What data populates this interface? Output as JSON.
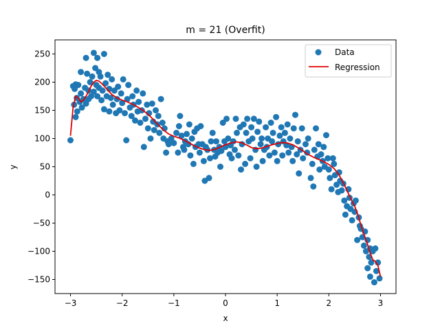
{
  "chart_data": {
    "type": "scatter",
    "title": "m = 21 (Overfit)",
    "xlabel": "x",
    "ylabel": "y",
    "xlim": [
      -3.3,
      3.3
    ],
    "ylim": [
      -175,
      275
    ],
    "xticks": [
      -3,
      -2,
      -1,
      0,
      1,
      2,
      3
    ],
    "yticks": [
      -150,
      -100,
      -50,
      0,
      50,
      100,
      150,
      200,
      250
    ],
    "legend_position": "top-right",
    "colors": {
      "data": "#1f77b4",
      "regression": "#e00000"
    },
    "series": [
      {
        "name": "Data",
        "kind": "scatter",
        "points": [
          [
            -3.0,
            97
          ],
          [
            -2.95,
            193
          ],
          [
            -2.93,
            160
          ],
          [
            -2.92,
            188
          ],
          [
            -2.9,
            196
          ],
          [
            -2.9,
            138
          ],
          [
            -2.88,
            172
          ],
          [
            -2.87,
            148
          ],
          [
            -2.85,
            195
          ],
          [
            -2.82,
            165
          ],
          [
            -2.8,
            218
          ],
          [
            -2.8,
            180
          ],
          [
            -2.78,
            155
          ],
          [
            -2.75,
            170
          ],
          [
            -2.72,
            190
          ],
          [
            -2.7,
            243
          ],
          [
            -2.7,
            162
          ],
          [
            -2.68,
            215
          ],
          [
            -2.65,
            185
          ],
          [
            -2.65,
            170
          ],
          [
            -2.62,
            200
          ],
          [
            -2.6,
            175
          ],
          [
            -2.58,
            210
          ],
          [
            -2.55,
            252
          ],
          [
            -2.55,
            183
          ],
          [
            -2.52,
            225
          ],
          [
            -2.5,
            195
          ],
          [
            -2.48,
            243
          ],
          [
            -2.48,
            175
          ],
          [
            -2.45,
            218
          ],
          [
            -2.45,
            190
          ],
          [
            -2.42,
            210
          ],
          [
            -2.4,
            168
          ],
          [
            -2.38,
            185
          ],
          [
            -2.35,
            250
          ],
          [
            -2.35,
            152
          ],
          [
            -2.32,
            198
          ],
          [
            -2.3,
            175
          ],
          [
            -2.28,
            213
          ],
          [
            -2.25,
            188
          ],
          [
            -2.25,
            148
          ],
          [
            -2.22,
            172
          ],
          [
            -2.2,
            205
          ],
          [
            -2.18,
            160
          ],
          [
            -2.15,
            185
          ],
          [
            -2.12,
            145
          ],
          [
            -2.1,
            170
          ],
          [
            -2.08,
            192
          ],
          [
            -2.05,
            150
          ],
          [
            -2.02,
            180
          ],
          [
            -2.0,
            163
          ],
          [
            -1.98,
            205
          ],
          [
            -1.95,
            145
          ],
          [
            -1.92,
            97
          ],
          [
            -1.9,
            170
          ],
          [
            -1.88,
            195
          ],
          [
            -1.85,
            155
          ],
          [
            -1.82,
            140
          ],
          [
            -1.8,
            175
          ],
          [
            -1.78,
            160
          ],
          [
            -1.75,
            132
          ],
          [
            -1.72,
            185
          ],
          [
            -1.7,
            148
          ],
          [
            -1.68,
            165
          ],
          [
            -1.65,
            128
          ],
          [
            -1.62,
            150
          ],
          [
            -1.6,
            180
          ],
          [
            -1.58,
            85
          ],
          [
            -1.55,
            135
          ],
          [
            -1.52,
            160
          ],
          [
            -1.5,
            118
          ],
          [
            -1.48,
            145
          ],
          [
            -1.45,
            100
          ],
          [
            -1.42,
            162
          ],
          [
            -1.4,
            130
          ],
          [
            -1.38,
            115
          ],
          [
            -1.35,
            150
          ],
          [
            -1.32,
            125
          ],
          [
            -1.3,
            140
          ],
          [
            -1.28,
            110
          ],
          [
            -1.25,
            170
          ],
          [
            -1.22,
            128
          ],
          [
            -1.2,
            100
          ],
          [
            -1.18,
            118
          ],
          [
            -1.15,
            75
          ],
          [
            -1.12,
            95
          ],
          [
            -1.1,
            90
          ],
          [
            -1.05,
            100
          ],
          [
            -1.0,
            92
          ],
          [
            -0.95,
            110
          ],
          [
            -0.92,
            75
          ],
          [
            -0.9,
            122
          ],
          [
            -0.88,
            140
          ],
          [
            -0.85,
            105
          ],
          [
            -0.82,
            85
          ],
          [
            -0.8,
            80
          ],
          [
            -0.78,
            95
          ],
          [
            -0.75,
            108
          ],
          [
            -0.72,
            90
          ],
          [
            -0.7,
            125
          ],
          [
            -0.68,
            70
          ],
          [
            -0.65,
            100
          ],
          [
            -0.62,
            55
          ],
          [
            -0.6,
            112
          ],
          [
            -0.58,
            85
          ],
          [
            -0.55,
            118
          ],
          [
            -0.52,
            90
          ],
          [
            -0.5,
            75
          ],
          [
            -0.48,
            122
          ],
          [
            -0.45,
            90
          ],
          [
            -0.42,
            60
          ],
          [
            -0.4,
            25
          ],
          [
            -0.38,
            85
          ],
          [
            -0.35,
            80
          ],
          [
            -0.32,
            30
          ],
          [
            -0.3,
            65
          ],
          [
            -0.28,
            95
          ],
          [
            -0.25,
            110
          ],
          [
            -0.22,
            80
          ],
          [
            -0.2,
            68
          ],
          [
            -0.18,
            95
          ],
          [
            -0.15,
            75
          ],
          [
            -0.12,
            85
          ],
          [
            -0.1,
            50
          ],
          [
            -0.08,
            78
          ],
          [
            -0.05,
            128
          ],
          [
            -0.02,
            95
          ],
          [
            0.0,
            85
          ],
          [
            0.02,
            135
          ],
          [
            0.05,
            100
          ],
          [
            0.08,
            72
          ],
          [
            0.1,
            88
          ],
          [
            0.12,
            65
          ],
          [
            0.15,
            95
          ],
          [
            0.18,
            80
          ],
          [
            0.2,
            135
          ],
          [
            0.22,
            110
          ],
          [
            0.25,
            70
          ],
          [
            0.28,
            120
          ],
          [
            0.3,
            45
          ],
          [
            0.32,
            90
          ],
          [
            0.35,
            125
          ],
          [
            0.38,
            55
          ],
          [
            0.4,
            110
          ],
          [
            0.42,
            135
          ],
          [
            0.45,
            95
          ],
          [
            0.48,
            65
          ],
          [
            0.5,
            120
          ],
          [
            0.52,
            100
          ],
          [
            0.55,
            135
          ],
          [
            0.58,
            80
          ],
          [
            0.6,
            50
          ],
          [
            0.62,
            112
          ],
          [
            0.65,
            130
          ],
          [
            0.68,
            90
          ],
          [
            0.7,
            100
          ],
          [
            0.72,
            60
          ],
          [
            0.75,
            80
          ],
          [
            0.78,
            120
          ],
          [
            0.8,
            85
          ],
          [
            0.82,
            100
          ],
          [
            0.85,
            70
          ],
          [
            0.88,
            128
          ],
          [
            0.9,
            95
          ],
          [
            0.92,
            110
          ],
          [
            0.95,
            75
          ],
          [
            0.98,
            138
          ],
          [
            1.0,
            60
          ],
          [
            1.02,
            90
          ],
          [
            1.05,
            105
          ],
          [
            1.08,
            120
          ],
          [
            1.1,
            70
          ],
          [
            1.12,
            95
          ],
          [
            1.15,
            110
          ],
          [
            1.18,
            88
          ],
          [
            1.2,
            125
          ],
          [
            1.22,
            75
          ],
          [
            1.25,
            100
          ],
          [
            1.28,
            85
          ],
          [
            1.3,
            60
          ],
          [
            1.32,
            118
          ],
          [
            1.35,
            142
          ],
          [
            1.38,
            72
          ],
          [
            1.4,
            95
          ],
          [
            1.42,
            38
          ],
          [
            1.45,
            80
          ],
          [
            1.48,
            118
          ],
          [
            1.5,
            65
          ],
          [
            1.55,
            90
          ],
          [
            1.58,
            75
          ],
          [
            1.6,
            100
          ],
          [
            1.65,
            30
          ],
          [
            1.68,
            55
          ],
          [
            1.7,
            15
          ],
          [
            1.72,
            80
          ],
          [
            1.75,
            118
          ],
          [
            1.78,
            68
          ],
          [
            1.8,
            90
          ],
          [
            1.82,
            45
          ],
          [
            1.85,
            72
          ],
          [
            1.88,
            60
          ],
          [
            1.9,
            85
          ],
          [
            1.92,
            50
          ],
          [
            1.95,
            106
          ],
          [
            1.98,
            65
          ],
          [
            2.0,
            45
          ],
          [
            2.02,
            30
          ],
          [
            2.05,
            10
          ],
          [
            2.08,
            65
          ],
          [
            2.1,
            55
          ],
          [
            2.12,
            35
          ],
          [
            2.15,
            18
          ],
          [
            2.18,
            5
          ],
          [
            2.2,
            40
          ],
          [
            2.22,
            25
          ],
          [
            2.25,
            8
          ],
          [
            2.28,
            20
          ],
          [
            2.3,
            -10
          ],
          [
            2.32,
            -35
          ],
          [
            2.35,
            -20
          ],
          [
            2.38,
            10
          ],
          [
            2.4,
            -5
          ],
          [
            2.42,
            -25
          ],
          [
            2.45,
            -45
          ],
          [
            2.48,
            -15
          ],
          [
            2.5,
            -30
          ],
          [
            2.52,
            -10
          ],
          [
            2.55,
            -80
          ],
          [
            2.58,
            -40
          ],
          [
            2.6,
            -55
          ],
          [
            2.62,
            -60
          ],
          [
            2.65,
            -75
          ],
          [
            2.68,
            -90
          ],
          [
            2.7,
            -65
          ],
          [
            2.72,
            -100
          ],
          [
            2.75,
            -130
          ],
          [
            2.75,
            -80
          ],
          [
            2.78,
            -110
          ],
          [
            2.8,
            -95
          ],
          [
            2.8,
            -145
          ],
          [
            2.82,
            -120
          ],
          [
            2.85,
            -100
          ],
          [
            2.88,
            -155
          ],
          [
            2.9,
            -95
          ],
          [
            2.92,
            -135
          ],
          [
            2.95,
            -120
          ],
          [
            2.98,
            -148
          ]
        ]
      },
      {
        "name": "Regression",
        "kind": "line",
        "points": [
          [
            -3.0,
            105
          ],
          [
            -2.95,
            155
          ],
          [
            -2.9,
            175
          ],
          [
            -2.85,
            172
          ],
          [
            -2.8,
            165
          ],
          [
            -2.75,
            168
          ],
          [
            -2.7,
            175
          ],
          [
            -2.65,
            183
          ],
          [
            -2.6,
            193
          ],
          [
            -2.55,
            200
          ],
          [
            -2.5,
            203
          ],
          [
            -2.45,
            202
          ],
          [
            -2.4,
            198
          ],
          [
            -2.35,
            193
          ],
          [
            -2.3,
            188
          ],
          [
            -2.25,
            183
          ],
          [
            -2.2,
            178
          ],
          [
            -2.1,
            172
          ],
          [
            -2.0,
            168
          ],
          [
            -1.9,
            165
          ],
          [
            -1.8,
            161
          ],
          [
            -1.7,
            156
          ],
          [
            -1.6,
            150
          ],
          [
            -1.5,
            143
          ],
          [
            -1.4,
            134
          ],
          [
            -1.3,
            124
          ],
          [
            -1.2,
            115
          ],
          [
            -1.1,
            108
          ],
          [
            -1.0,
            104
          ],
          [
            -0.9,
            101
          ],
          [
            -0.8,
            97
          ],
          [
            -0.7,
            92
          ],
          [
            -0.6,
            87
          ],
          [
            -0.5,
            83
          ],
          [
            -0.4,
            80
          ],
          [
            -0.3,
            79
          ],
          [
            -0.2,
            81
          ],
          [
            -0.1,
            85
          ],
          [
            0.0,
            89
          ],
          [
            0.1,
            92
          ],
          [
            0.2,
            94
          ],
          [
            0.3,
            93
          ],
          [
            0.4,
            89
          ],
          [
            0.5,
            84
          ],
          [
            0.6,
            82
          ],
          [
            0.7,
            83
          ],
          [
            0.8,
            86
          ],
          [
            0.9,
            89
          ],
          [
            1.0,
            91
          ],
          [
            1.1,
            93
          ],
          [
            1.2,
            92
          ],
          [
            1.3,
            89
          ],
          [
            1.4,
            84
          ],
          [
            1.5,
            78
          ],
          [
            1.6,
            72
          ],
          [
            1.7,
            67
          ],
          [
            1.8,
            63
          ],
          [
            1.9,
            59
          ],
          [
            2.0,
            54
          ],
          [
            2.1,
            47
          ],
          [
            2.2,
            35
          ],
          [
            2.3,
            18
          ],
          [
            2.4,
            -2
          ],
          [
            2.5,
            -20
          ],
          [
            2.55,
            -32
          ],
          [
            2.6,
            -47
          ],
          [
            2.65,
            -62
          ],
          [
            2.7,
            -75
          ],
          [
            2.75,
            -88
          ],
          [
            2.8,
            -103
          ],
          [
            2.85,
            -115
          ],
          [
            2.9,
            -118
          ],
          [
            2.95,
            -125
          ],
          [
            3.0,
            -145
          ]
        ]
      }
    ]
  }
}
